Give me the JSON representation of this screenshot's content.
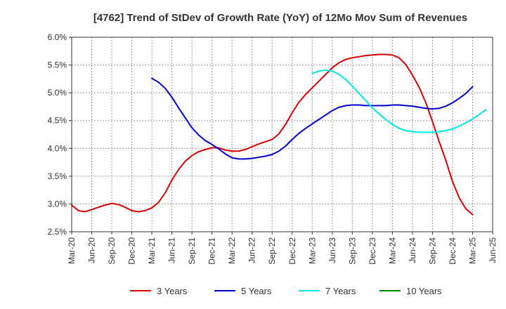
{
  "chart_data": {
    "type": "line",
    "title": "[4762]  Trend of StDev of Growth Rate (YoY) of 12Mo Mov Sum of Revenues",
    "xlabel": "",
    "ylabel": "",
    "ylim": [
      2.5,
      6.0
    ],
    "y_ticks": [
      2.5,
      3.0,
      3.5,
      4.0,
      4.5,
      5.0,
      5.5,
      6.0
    ],
    "y_tick_labels": [
      "2.5%",
      "3.0%",
      "3.5%",
      "4.0%",
      "4.5%",
      "5.0%",
      "5.5%",
      "6.0%"
    ],
    "x_tick_labels": [
      "Mar-20",
      "Jun-20",
      "Sep-20",
      "Dec-20",
      "Mar-21",
      "Jun-21",
      "Sep-21",
      "Dec-21",
      "Mar-22",
      "Jun-22",
      "Sep-22",
      "Dec-22",
      "Mar-23",
      "Jun-23",
      "Sep-23",
      "Dec-23",
      "Mar-24",
      "Jun-24",
      "Sep-24",
      "Dec-24",
      "Mar-25",
      "Jun-25"
    ],
    "grid": true,
    "legend_position": "bottom",
    "series": [
      {
        "name": "3 Years",
        "color": "#dd0000",
        "start_index": 0,
        "values": [
          2.98,
          2.88,
          2.86,
          2.9,
          2.94,
          2.98,
          3.01,
          2.99,
          2.94,
          2.88,
          2.86,
          2.88,
          2.93,
          3.03,
          3.2,
          3.43,
          3.62,
          3.77,
          3.87,
          3.94,
          3.98,
          4.01,
          4.01,
          3.97,
          3.95,
          3.95,
          3.98,
          4.03,
          4.08,
          4.12,
          4.16,
          4.26,
          4.43,
          4.64,
          4.83,
          4.97,
          5.09,
          5.21,
          5.33,
          5.45,
          5.54,
          5.6,
          5.63,
          5.65,
          5.67,
          5.68,
          5.69,
          5.69,
          5.68,
          5.63,
          5.51,
          5.32,
          5.1,
          4.82,
          4.48,
          4.12,
          3.78,
          3.4,
          3.11,
          2.91,
          2.81
        ]
      },
      {
        "name": "5 Years",
        "color": "#0000cc",
        "start_index": 12,
        "values": [
          5.26,
          5.19,
          5.08,
          4.92,
          4.73,
          4.55,
          4.37,
          4.24,
          4.14,
          4.07,
          3.99,
          3.9,
          3.83,
          3.81,
          3.81,
          3.82,
          3.84,
          3.86,
          3.89,
          3.95,
          4.04,
          4.16,
          4.27,
          4.36,
          4.44,
          4.52,
          4.6,
          4.68,
          4.74,
          4.77,
          4.78,
          4.78,
          4.77,
          4.77,
          4.77,
          4.77,
          4.78,
          4.78,
          4.77,
          4.76,
          4.74,
          4.72,
          4.71,
          4.72,
          4.76,
          4.82,
          4.9,
          4.99,
          5.11
        ]
      },
      {
        "name": "7 Years",
        "color": "#00e5e5",
        "start_index": 36,
        "values": [
          5.35,
          5.39,
          5.41,
          5.39,
          5.33,
          5.24,
          5.12,
          4.99,
          4.86,
          4.73,
          4.62,
          4.52,
          4.43,
          4.36,
          4.32,
          4.3,
          4.29,
          4.29,
          4.29,
          4.3,
          4.32,
          4.35,
          4.4,
          4.46,
          4.53,
          4.61,
          4.7
        ]
      },
      {
        "name": "10 Years",
        "color": "#008800",
        "start_index": 0,
        "values": []
      }
    ]
  }
}
